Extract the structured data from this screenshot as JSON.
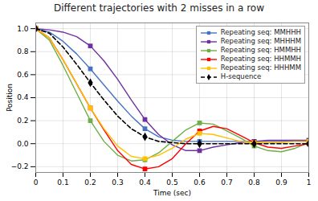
{
  "chart_data": {
    "type": "line",
    "title": "Different trajectories with 2 misses in a row",
    "xlabel": "Time (sec)",
    "ylabel": "Position",
    "xlim": [
      0,
      1
    ],
    "ylim": [
      -0.25,
      1.05
    ],
    "xticks": [
      0,
      0.1,
      0.2,
      0.3,
      0.4,
      0.5,
      0.6,
      0.7,
      0.8,
      0.9,
      1
    ],
    "yticks": [
      {
        "value": -0.2,
        "label": "−0.2"
      },
      {
        "value": 0,
        "label": "0.0"
      },
      0.2,
      0.4,
      0.6,
      0.8,
      {
        "value": 1,
        "label": "1.0"
      }
    ],
    "grid": true,
    "legend": "upper right",
    "x": [
      0,
      0.05,
      0.1,
      0.15,
      0.2,
      0.25,
      0.3,
      0.35,
      0.4,
      0.45,
      0.5,
      0.55,
      0.6,
      0.65,
      0.7,
      0.75,
      0.8,
      0.85,
      0.9,
      0.95,
      1.0
    ],
    "series": [
      {
        "name": "Repeating seq: MMHHH",
        "color": "#4472C4",
        "marker": "square",
        "line_style": "solid",
        "values": [
          1.0,
          0.97,
          0.89,
          0.78,
          0.65,
          0.51,
          0.37,
          0.24,
          0.13,
          0.06,
          0.03,
          0.02,
          0.02,
          0.02,
          0.02,
          0.02,
          0.02,
          0.02,
          0.02,
          0.02,
          0.02
        ]
      },
      {
        "name": "Repeating seq: MHHHM",
        "color": "#7030A0",
        "marker": "square",
        "line_style": "solid",
        "values": [
          1.0,
          0.99,
          0.97,
          0.93,
          0.85,
          0.72,
          0.56,
          0.38,
          0.21,
          0.08,
          -0.01,
          -0.06,
          -0.06,
          -0.03,
          -0.01,
          0.01,
          0.02,
          0.03,
          0.03,
          0.03,
          0.03
        ]
      },
      {
        "name": "Repeating seq: HMMHH",
        "color": "#70AD47",
        "marker": "square",
        "line_style": "solid",
        "values": [
          1.0,
          0.9,
          0.68,
          0.44,
          0.2,
          0.02,
          -0.1,
          -0.15,
          -0.14,
          -0.08,
          0.02,
          0.12,
          0.18,
          0.17,
          0.11,
          0.05,
          -0.02,
          -0.06,
          -0.07,
          -0.04,
          0.01
        ]
      },
      {
        "name": "Repeating seq: HHMMH",
        "color": "#FF0000",
        "marker": "square",
        "line_style": "solid",
        "values": [
          1.0,
          0.92,
          0.73,
          0.52,
          0.31,
          0.12,
          -0.06,
          -0.18,
          -0.22,
          -0.2,
          -0.13,
          0.0,
          0.11,
          0.15,
          0.13,
          0.07,
          0.01,
          -0.03,
          -0.04,
          -0.02,
          0.0
        ]
      },
      {
        "name": "Repeating seq: HHHMM",
        "color": "#FFC000",
        "marker": "square",
        "line_style": "solid",
        "values": [
          1.0,
          0.92,
          0.73,
          0.52,
          0.31,
          0.13,
          -0.02,
          -0.11,
          -0.13,
          -0.1,
          -0.04,
          0.04,
          0.09,
          0.08,
          0.05,
          0.02,
          0.01,
          0.01,
          0.01,
          0.02,
          0.02
        ]
      },
      {
        "name": "H-sequence",
        "color": "#000000",
        "marker": "diamond",
        "line_style": "dashed",
        "values": [
          1.0,
          0.96,
          0.84,
          0.69,
          0.53,
          0.38,
          0.24,
          0.13,
          0.06,
          0.02,
          0.01,
          0.0,
          0.0,
          0.0,
          0.0,
          0.0,
          0.0,
          0.0,
          0.0,
          0.0,
          0.0
        ]
      }
    ]
  }
}
